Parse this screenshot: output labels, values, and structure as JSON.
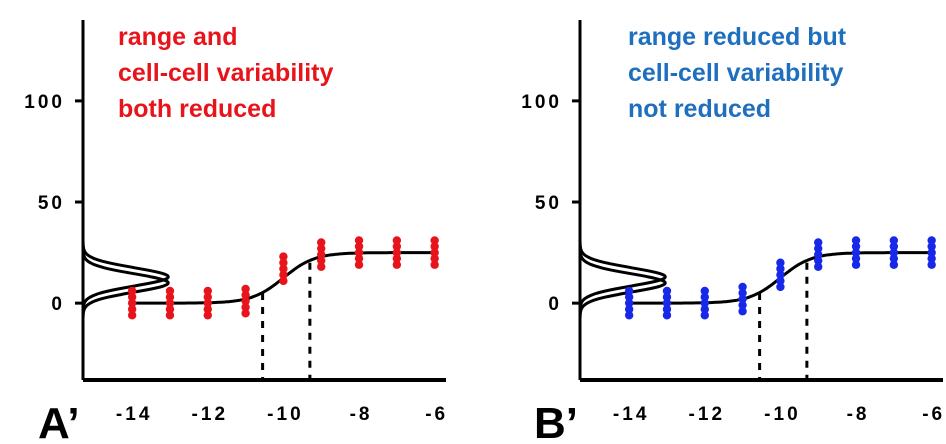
{
  "chart_data": [
    {
      "type": "scatter",
      "panel_label": "A’",
      "annotation": [
        "range and",
        "cell-cell variability",
        "both reduced"
      ],
      "x_ticks": [
        "-14",
        "-12",
        "-10",
        "-8",
        "-6"
      ],
      "y_ticks": [
        "0",
        "50",
        "100"
      ],
      "xlim": [
        -15.3,
        -5.7
      ],
      "ylim": [
        -38,
        140
      ],
      "point_color": "#e8141b",
      "annotation_color": "#e8141b",
      "series": [
        {
          "x": -14,
          "y": [
            -6,
            -3,
            0,
            3,
            6
          ]
        },
        {
          "x": -13,
          "y": [
            -6,
            -3,
            0,
            3,
            6
          ]
        },
        {
          "x": -12,
          "y": [
            -6,
            -3,
            0,
            3,
            6
          ]
        },
        {
          "x": -11,
          "y": [
            -5,
            -2,
            1,
            4,
            7
          ]
        },
        {
          "x": -10,
          "y": [
            11,
            14,
            17,
            20,
            23
          ]
        },
        {
          "x": -9,
          "y": [
            18,
            21,
            24,
            27,
            30
          ]
        },
        {
          "x": -8,
          "y": [
            19,
            22,
            25,
            28,
            31
          ]
        },
        {
          "x": -7,
          "y": [
            19,
            22,
            25,
            28,
            31
          ]
        },
        {
          "x": -6,
          "y": [
            19,
            22,
            25,
            28,
            31
          ]
        }
      ],
      "curve": {
        "bottom": 0,
        "top": 25,
        "ec50": -10,
        "hill": 1.05
      },
      "dotted_lines": [
        {
          "x": -10.55,
          "y_top": 5
        },
        {
          "x": -9.3,
          "y_top": 20
        }
      ],
      "distributions": [
        {
          "center": 10,
          "spread": 4.5
        },
        {
          "center": 13,
          "spread": 4.5
        }
      ]
    },
    {
      "type": "scatter",
      "panel_label": "B’",
      "annotation": [
        "range reduced but",
        "cell-cell variability",
        "not reduced"
      ],
      "x_ticks": [
        "-14",
        "-12",
        "-10",
        "-8",
        "-6"
      ],
      "y_ticks": [
        "0",
        "50",
        "100"
      ],
      "xlim": [
        -15.3,
        -5.7
      ],
      "ylim": [
        -38,
        140
      ],
      "point_color": "#1728e8",
      "annotation_color": "#1e6fbe",
      "series": [
        {
          "x": -14,
          "y": [
            -6,
            -3,
            0,
            3,
            6
          ]
        },
        {
          "x": -13,
          "y": [
            -6,
            -3,
            0,
            3,
            6
          ]
        },
        {
          "x": -12,
          "y": [
            -6,
            -3,
            0,
            3,
            6
          ]
        },
        {
          "x": -11,
          "y": [
            -4,
            -1,
            2,
            5,
            8
          ]
        },
        {
          "x": -10,
          "y": [
            8,
            11,
            14,
            17,
            20
          ]
        },
        {
          "x": -9,
          "y": [
            18,
            21,
            24,
            27,
            30
          ]
        },
        {
          "x": -8,
          "y": [
            19,
            22,
            25,
            28,
            31
          ]
        },
        {
          "x": -7,
          "y": [
            19,
            22,
            25,
            28,
            31
          ]
        },
        {
          "x": -6,
          "y": [
            19,
            22,
            25,
            28,
            31
          ]
        }
      ],
      "curve": {
        "bottom": 0,
        "top": 25,
        "ec50": -10,
        "hill": 1.05
      },
      "dotted_lines": [
        {
          "x": -10.55,
          "y_top": 5
        },
        {
          "x": -9.3,
          "y_top": 20
        }
      ],
      "distributions": [
        {
          "center": 10,
          "spread": 4.5
        },
        {
          "center": 13,
          "spread": 4.5
        }
      ]
    }
  ]
}
